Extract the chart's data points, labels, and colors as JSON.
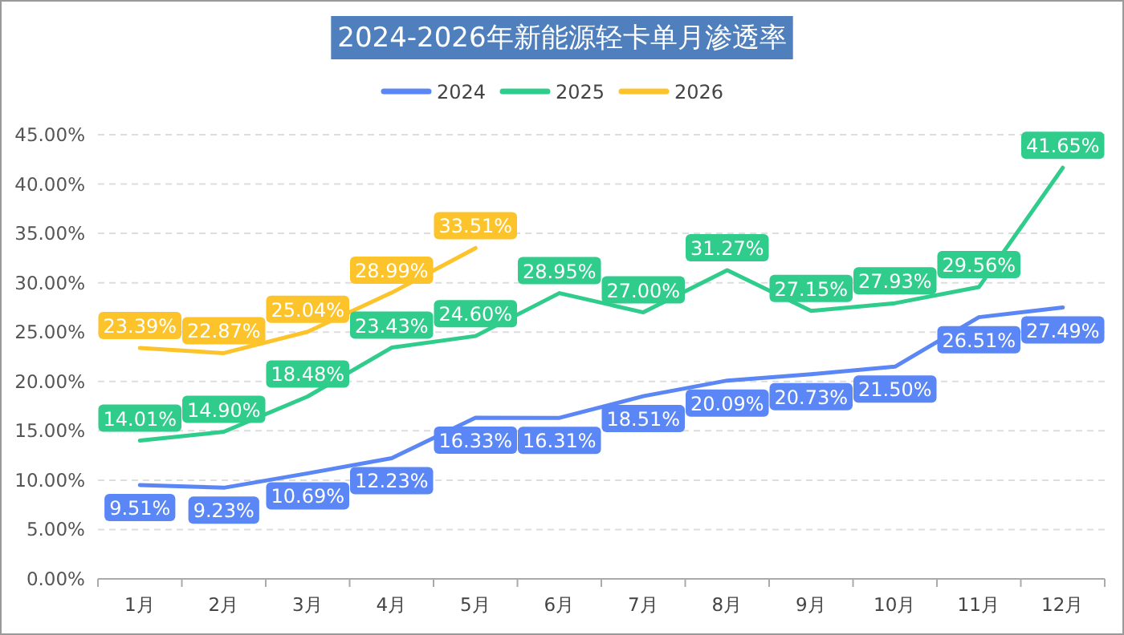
{
  "chart_data": {
    "type": "line",
    "title": "2024-2026年新能源轻卡单月渗透率",
    "categories": [
      "1月",
      "2月",
      "3月",
      "4月",
      "5月",
      "6月",
      "7月",
      "8月",
      "9月",
      "10月",
      "11月",
      "12月"
    ],
    "series": [
      {
        "name": "2024",
        "color": "#5b86f5",
        "values": [
          9.51,
          9.23,
          10.69,
          12.23,
          16.33,
          16.31,
          18.51,
          20.09,
          20.73,
          21.5,
          26.51,
          27.49
        ],
        "value_labels": [
          "9.51%",
          "9.23%",
          "10.69%",
          "12.23%",
          "16.33%",
          "16.31%",
          "18.51%",
          "20.09%",
          "20.73%",
          "21.50%",
          "26.51%",
          "27.49%"
        ]
      },
      {
        "name": "2025",
        "color": "#2fcc8b",
        "values": [
          14.01,
          14.9,
          18.48,
          23.43,
          24.6,
          28.95,
          27.0,
          31.27,
          27.15,
          27.93,
          29.56,
          41.65
        ],
        "value_labels": [
          "14.01%",
          "14.90%",
          "18.48%",
          "23.43%",
          "24.60%",
          "28.95%",
          "27.00%",
          "31.27%",
          "27.15%",
          "27.93%",
          "29.56%",
          "41.65%"
        ]
      },
      {
        "name": "2026",
        "color": "#fcc42a",
        "values": [
          23.39,
          22.87,
          25.04,
          28.99,
          33.51,
          null,
          null,
          null,
          null,
          null,
          null,
          null
        ],
        "value_labels": [
          "23.39%",
          "22.87%",
          "25.04%",
          "28.99%",
          "33.51%",
          null,
          null,
          null,
          null,
          null,
          null,
          null
        ]
      }
    ],
    "ylim": [
      0,
      45
    ],
    "yticks": [
      {
        "value": 0,
        "label": "0.00%"
      },
      {
        "value": 5,
        "label": "5.00%"
      },
      {
        "value": 10,
        "label": "10.00%"
      },
      {
        "value": 15,
        "label": "15.00%"
      },
      {
        "value": 20,
        "label": "20.00%"
      },
      {
        "value": 25,
        "label": "25.00%"
      },
      {
        "value": 30,
        "label": "30.00%"
      },
      {
        "value": 35,
        "label": "35.00%"
      },
      {
        "value": 40,
        "label": "40.00%"
      },
      {
        "value": 45,
        "label": "45.00%"
      }
    ],
    "grid": "y",
    "legend": "top"
  }
}
